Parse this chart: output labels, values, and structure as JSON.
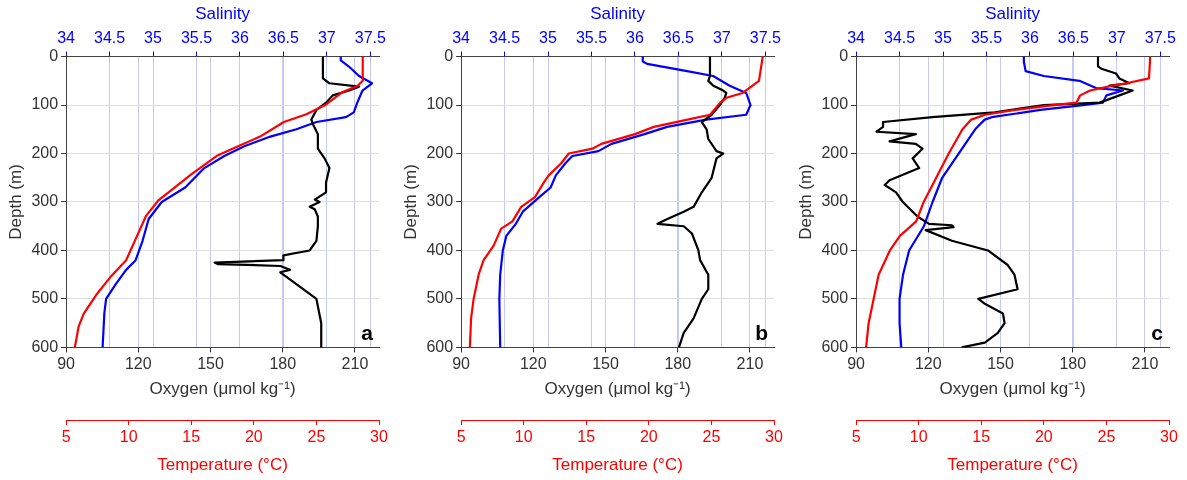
{
  "chart_data": [
    {
      "type": "line",
      "xlabel": "Oxygen (μmol kg⁻¹)",
      "x2label": "Salinity",
      "ylabel": "Depth (m)",
      "xlim": [
        90,
        220
      ],
      "xticks": [
        90,
        120,
        150,
        180,
        210
      ],
      "x2lim": [
        34,
        37.6
      ],
      "x2ticks": [
        34,
        34.5,
        35,
        35.5,
        36,
        36.5,
        37,
        37.5
      ],
      "ylim": [
        600,
        0
      ],
      "yticks": [
        0,
        100,
        200,
        300,
        400,
        500,
        600
      ],
      "grid": true,
      "annotations": [
        "a"
      ],
      "series": [
        {
          "color": "#000000",
          "x": [
            196.7,
            196.7,
            199.4,
            211.7,
            207.6,
            200.8,
            198.0,
            194.0,
            191.9,
            192.6,
            194.6,
            194.6,
            197.4,
            199.4,
            198.0,
            198.0,
            193.3,
            195.3,
            191.2,
            193.3,
            194.6,
            194.6,
            194.0,
            191.2,
            180.3,
            180.3,
            151.7,
            153.0,
            179.0,
            183.0,
            179.0,
            181.7,
            188.5,
            194.0,
            196.0,
            196.0
          ],
          "values": [
            0,
            45,
            55,
            62,
            70,
            80,
            95,
            110,
            130,
            140,
            160,
            190,
            210,
            230,
            260,
            280,
            295,
            300,
            310,
            315,
            330,
            350,
            380,
            400,
            410,
            420,
            425,
            428,
            432,
            440,
            445,
            455,
            480,
            500,
            550,
            600
          ]
        },
        {
          "color": "#0000ff",
          "axis": "x2",
          "x": [
            37.16,
            37.16,
            37.25,
            37.37,
            37.52,
            37.41,
            37.35,
            37.31,
            37.22,
            36.88,
            36.65,
            36.35,
            36.05,
            35.82,
            35.59,
            35.37,
            35.1,
            34.95,
            34.88,
            34.8,
            34.69,
            34.57,
            34.46,
            34.44,
            34.42
          ],
          "values": [
            0,
            8,
            20,
            40,
            55,
            70,
            95,
            115,
            125,
            135,
            150,
            165,
            185,
            205,
            230,
            270,
            300,
            335,
            380,
            420,
            440,
            470,
            500,
            530,
            600
          ]
        }
      ]
    },
    {
      "type": "line",
      "xlabel": "Temperature (°C)",
      "xlim": [
        5,
        30
      ],
      "xticks": [
        5,
        10,
        15,
        20,
        25,
        30
      ],
      "ylim": [
        600,
        0
      ],
      "tick_labels": "x",
      "series": [
        {
          "color": "#ff0000",
          "x": [
            28.7,
            28.7,
            28.3,
            27.1,
            25.7,
            24.2,
            22.4,
            20.5,
            18.2,
            17.1,
            15.0,
            12.4,
            11.4,
            10.6,
            9.8,
            8.6,
            7.4,
            6.4,
            6.0,
            5.7
          ],
          "values": [
            0,
            50,
            60,
            73,
            100,
            119,
            135,
            165,
            191,
            204,
            243,
            296,
            328,
            374,
            420,
            453,
            492,
            531,
            557,
            600
          ]
        }
      ]
    },
    {
      "type": "line",
      "xlabel": "Oxygen (μmol kg⁻¹)",
      "x2label": "Salinity",
      "ylabel": "Depth (m)",
      "xlim": [
        90,
        220
      ],
      "xticks": [
        90,
        120,
        150,
        180,
        210
      ],
      "x2lim": [
        34,
        37.6
      ],
      "x2ticks": [
        34,
        34.5,
        35,
        35.5,
        36,
        36.5,
        37,
        37.5
      ],
      "ylim": [
        600,
        0
      ],
      "yticks": [
        0,
        100,
        200,
        300,
        400,
        500,
        600
      ],
      "grid": true,
      "annotations": [
        "b"
      ],
      "series": [
        {
          "color": "#000000",
          "x": [
            193.4,
            193.4,
            192.7,
            194.8,
            198.9,
            200.2,
            199.5,
            197.5,
            194.1,
            190.0,
            192.0,
            192.7,
            196.1,
            198.9,
            196.1,
            194.1,
            190.0,
            186.6,
            182.5,
            175.7,
            171.6,
            182.5,
            185.9,
            188.6,
            189.3,
            192.7,
            192.7,
            190.0,
            186.6,
            182.5,
            180.5
          ],
          "values": [
            0,
            40,
            50,
            60,
            70,
            75,
            85,
            100,
            120,
            135,
            150,
            170,
            195,
            200,
            210,
            250,
            280,
            310,
            320,
            335,
            345,
            350,
            365,
            400,
            420,
            450,
            480,
            500,
            540,
            570,
            600
          ]
        },
        {
          "color": "#0000ff",
          "axis": "x2",
          "x": [
            36.09,
            36.09,
            36.14,
            36.6,
            36.9,
            37.09,
            37.28,
            37.33,
            37.28,
            36.82,
            36.37,
            36.11,
            35.73,
            35.58,
            35.28,
            35.2,
            35.09,
            35.03,
            34.9,
            34.71,
            34.63,
            34.52,
            34.48,
            34.45,
            34.44,
            34.45
          ],
          "values": [
            0,
            10,
            15,
            30,
            40,
            60,
            75,
            100,
            120,
            130,
            145,
            160,
            180,
            195,
            205,
            220,
            245,
            270,
            290,
            320,
            345,
            370,
            400,
            450,
            500,
            600
          ]
        }
      ]
    },
    {
      "type": "line",
      "xlabel": "Temperature (°C)",
      "xlim": [
        5,
        30
      ],
      "xticks": [
        5,
        10,
        15,
        20,
        25,
        30
      ],
      "ylim": [
        600,
        0
      ],
      "tick_labels": "x",
      "series": [
        {
          "color": "#ff0000",
          "x": [
            29.1,
            28.8,
            27.5,
            26.2,
            25.7,
            24.9,
            23.1,
            20.4,
            18.9,
            16.2,
            15.5,
            13.6,
            13.0,
            12.0,
            11.6,
            10.9,
            9.8,
            9.1,
            8.2,
            7.6,
            6.8,
            6.4,
            6.0,
            5.8,
            5.7
          ],
          "values": [
            0,
            50,
            75,
            85,
            95,
            120,
            130,
            145,
            160,
            180,
            190,
            200,
            220,
            245,
            260,
            290,
            310,
            340,
            355,
            390,
            420,
            450,
            500,
            540,
            600
          ]
        }
      ]
    },
    {
      "type": "line",
      "xlabel": "Oxygen (μmol kg⁻¹)",
      "x2label": "Salinity",
      "ylabel": "Depth (m)",
      "xlim": [
        90,
        220
      ],
      "xticks": [
        90,
        120,
        150,
        180,
        210
      ],
      "x2lim": [
        34,
        37.6
      ],
      "x2ticks": [
        34,
        34.5,
        35,
        35.5,
        36,
        36.5,
        37,
        37.5
      ],
      "ylim": [
        600,
        0
      ],
      "yticks": [
        0,
        100,
        200,
        300,
        400,
        500,
        600
      ],
      "grid": true,
      "annotations": [
        "c"
      ],
      "series": [
        {
          "color": "#000000",
          "x": [
            190.5,
            190.5,
            191.9,
            198.0,
            199.4,
            203.5,
            195.3,
            204.9,
            199.4,
            191.2,
            168.0,
            147.6,
            121.7,
            101.2,
            101.2,
            98.5,
            114.8,
            103.9,
            114.8,
            117.6,
            113.5,
            116.2,
            103.9,
            101.9,
            106.6,
            109.4,
            115.5,
            120.3,
            129.8,
            130.5,
            118.9,
            129.8,
            144.8,
            153.0,
            155.8,
            157.1,
            140.8,
            143.5,
            151.0,
            151.7,
            148.9,
            143.5,
            133.9
          ],
          "values": [
            0,
            20,
            25,
            35,
            45,
            55,
            60,
            70,
            80,
            95,
            100,
            115,
            125,
            135,
            145,
            155,
            160,
            175,
            180,
            190,
            210,
            230,
            255,
            265,
            280,
            300,
            330,
            345,
            348,
            352,
            358,
            380,
            400,
            430,
            450,
            480,
            500,
            510,
            530,
            550,
            570,
            590,
            600
          ]
        },
        {
          "color": "#0000ff",
          "axis": "x2",
          "x": [
            35.93,
            35.93,
            35.95,
            36.16,
            36.57,
            36.76,
            37.07,
            36.88,
            36.84,
            36.61,
            36.12,
            35.56,
            35.48,
            35.37,
            35.18,
            34.99,
            34.88,
            34.78,
            34.61,
            34.54,
            34.5,
            34.5,
            34.52
          ],
          "values": [
            0,
            10,
            30,
            40,
            50,
            65,
            70,
            80,
            95,
            100,
            110,
            125,
            130,
            150,
            200,
            250,
            300,
            350,
            400,
            450,
            500,
            550,
            600
          ]
        }
      ]
    },
    {
      "type": "line",
      "xlabel": "Temperature (°C)",
      "xlim": [
        5,
        30
      ],
      "xticks": [
        5,
        10,
        15,
        20,
        25,
        30
      ],
      "ylim": [
        600,
        0
      ],
      "tick_labels": "x",
      "series": [
        {
          "color": "#ff0000",
          "x": [
            28.5,
            28.4,
            26.6,
            25.5,
            23.7,
            22.9,
            22.6,
            20.8,
            17.7,
            15.3,
            14.2,
            13.5,
            12.4,
            11.4,
            10.4,
            9.8,
            8.5,
            7.7,
            6.8,
            6.4,
            6.0,
            5.8
          ],
          "values": [
            0,
            45,
            55,
            60,
            70,
            80,
            95,
            100,
            110,
            120,
            130,
            150,
            200,
            250,
            300,
            340,
            370,
            400,
            450,
            500,
            550,
            600
          ]
        }
      ]
    }
  ]
}
